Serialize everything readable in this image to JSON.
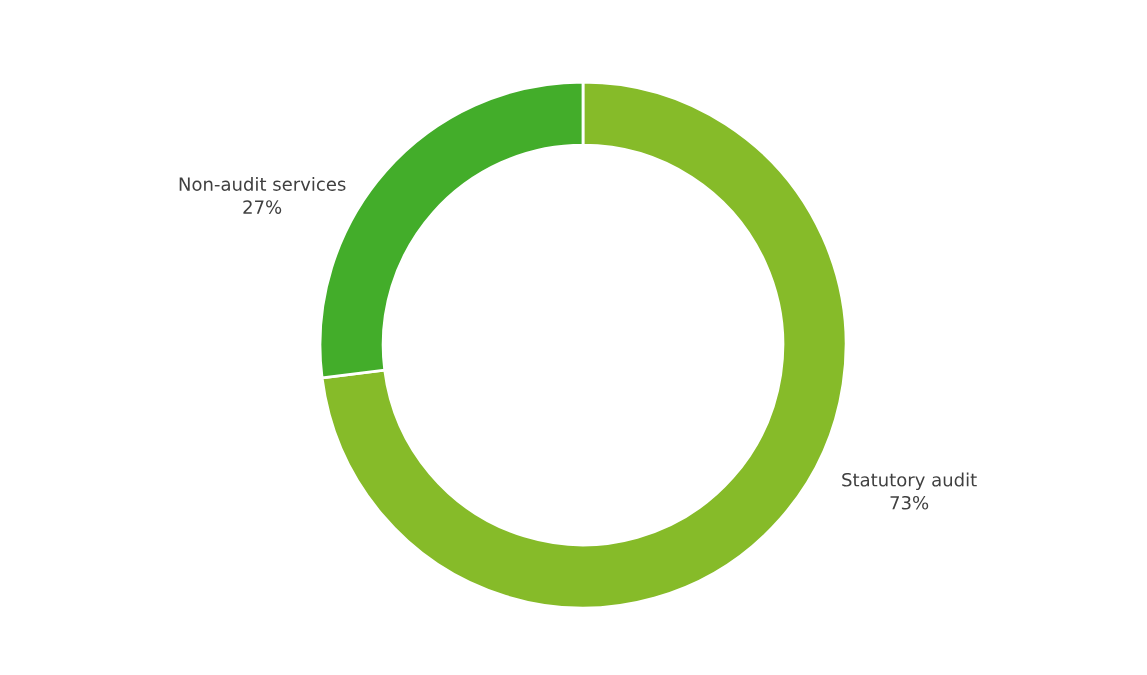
{
  "chart_data": {
    "type": "donut",
    "categories": [
      "Statutory audit",
      "Non-audit services"
    ],
    "values": [
      73,
      27
    ],
    "colors": [
      "#86bb29",
      "#43ad2a"
    ],
    "value_labels": [
      "73%",
      "27%"
    ],
    "legend": false
  }
}
